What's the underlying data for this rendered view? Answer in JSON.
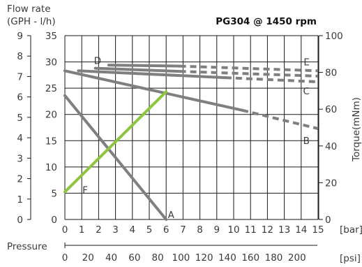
{
  "chart_data": {
    "type": "line",
    "title": "PG304 @ 1450 rpm",
    "left_axis_title_lines": [
      "Flow rate",
      "(GPH - l/h)"
    ],
    "right_axis_title": "Torque(mNm)",
    "bottom_axis_title": "Pressure",
    "x_unit_bar": "[bar]",
    "x_unit_psi": "[psi]",
    "x_bar": {
      "range": [
        0,
        15
      ],
      "ticks": [
        "0",
        "1",
        "2",
        "3",
        "4",
        "5",
        "6",
        "7",
        "8",
        "9",
        "10",
        "11",
        "12",
        "13",
        "14",
        "15"
      ]
    },
    "x_psi": {
      "ticks": [
        "0",
        "20",
        "40",
        "60",
        "80",
        "100",
        "120",
        "140",
        "160",
        "180",
        "200"
      ]
    },
    "y_lh": {
      "range": [
        0,
        35
      ],
      "ticks": [
        "0",
        "5",
        "10",
        "15",
        "20",
        "25",
        "30",
        "35"
      ]
    },
    "y_gph": {
      "range": [
        0,
        9
      ],
      "ticks": [
        "0",
        "1",
        "2",
        "3",
        "4",
        "5",
        "6",
        "7",
        "8",
        "9"
      ]
    },
    "y_torque": {
      "range": [
        0,
        100
      ],
      "ticks": [
        "0",
        "20",
        "40",
        "60",
        "80",
        "100"
      ]
    },
    "grid": true,
    "colors": {
      "gray": "#7f7f7f",
      "green": "#8cc63f",
      "grid": "#1a1a1a"
    },
    "series": [
      {
        "label": "A",
        "axis": "flow",
        "color": "#7f7f7f",
        "solid": [
          [
            0,
            23.6
          ],
          [
            6,
            0
          ]
        ],
        "dashed": []
      },
      {
        "label": "B",
        "axis": "flow",
        "color": "#7f7f7f",
        "solid": [
          [
            0,
            28.3
          ],
          [
            10.5,
            20.8
          ]
        ],
        "dashed": [
          [
            10.5,
            20.8
          ],
          [
            15,
            17.3
          ]
        ]
      },
      {
        "label": "C",
        "axis": "flow",
        "color": "#7f7f7f",
        "solid": [
          [
            0.8,
            28.3
          ],
          [
            9.5,
            27
          ]
        ],
        "dashed": [
          [
            9.5,
            27
          ],
          [
            15,
            26.2
          ]
        ]
      },
      {
        "label": "D",
        "axis": "flow",
        "color": "#7f7f7f",
        "solid": [
          [
            1.8,
            28.8
          ],
          [
            6.8,
            28.2
          ]
        ],
        "dashed": [
          [
            6.8,
            28.2
          ],
          [
            15,
            27.3
          ]
        ]
      },
      {
        "label": "E",
        "axis": "flow",
        "color": "#7f7f7f",
        "solid": [
          [
            2.6,
            29.4
          ],
          [
            6.8,
            29.2
          ]
        ],
        "dashed": [
          [
            6.8,
            29.2
          ],
          [
            15,
            28.3
          ]
        ]
      },
      {
        "label": "F",
        "axis": "torque",
        "color": "#8cc63f",
        "solid": [
          [
            0,
            15
          ],
          [
            6,
            69.5
          ]
        ],
        "dashed": []
      }
    ]
  }
}
